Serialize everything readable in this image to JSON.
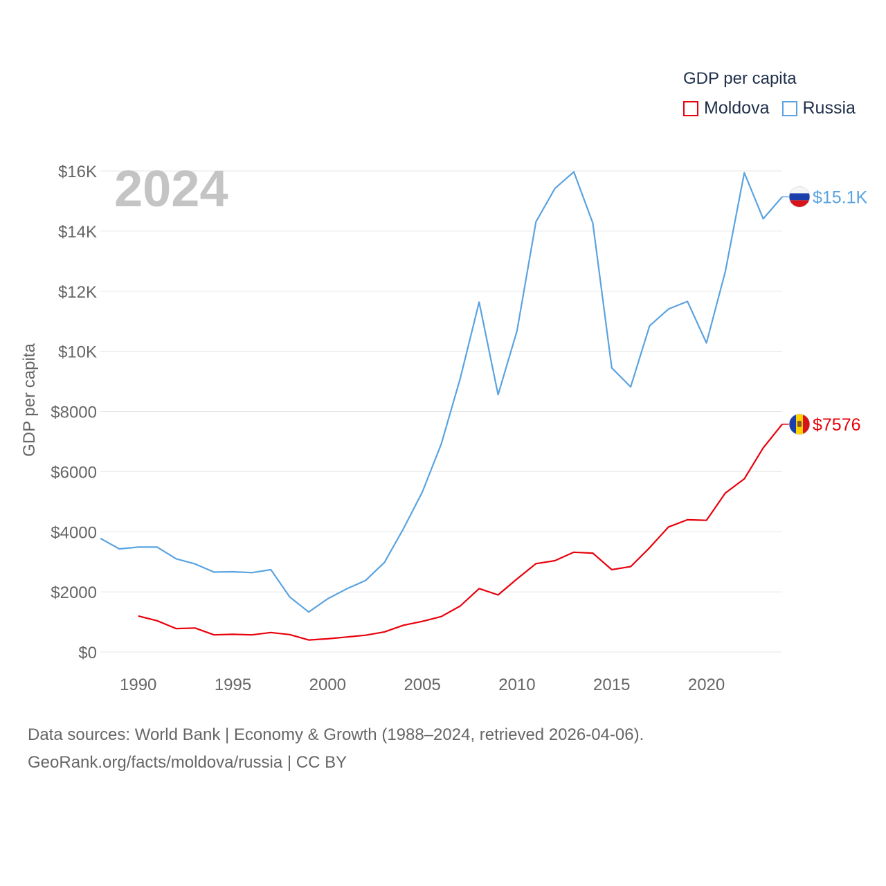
{
  "legend": {
    "title": "GDP per capita",
    "items": [
      {
        "label": "Moldova",
        "color": "#e8000b"
      },
      {
        "label": "Russia",
        "color": "#5aa3e0"
      }
    ]
  },
  "footer": {
    "line1": "Data sources: World Bank | Economy & Growth (1988–2024, retrieved 2026-04-06).",
    "line2": "GeoRank.org/facts/moldova/russia | CC BY"
  },
  "chart_data": {
    "type": "line",
    "title": "",
    "year_label": "2024",
    "xlabel": "",
    "ylabel": "GDP per capita",
    "xlim": [
      1988,
      2024
    ],
    "ylim": [
      0,
      16000
    ],
    "x_ticks": [
      1990,
      1995,
      2000,
      2005,
      2010,
      2015,
      2020
    ],
    "y_ticks": [
      {
        "value": 0,
        "label": "$0"
      },
      {
        "value": 2000,
        "label": "$2000"
      },
      {
        "value": 4000,
        "label": "$4000"
      },
      {
        "value": 6000,
        "label": "$6000"
      },
      {
        "value": 8000,
        "label": "$8000"
      },
      {
        "value": 10000,
        "label": "$10K"
      },
      {
        "value": 12000,
        "label": "$12K"
      },
      {
        "value": 14000,
        "label": "$14K"
      },
      {
        "value": 16000,
        "label": "$16K"
      }
    ],
    "series": [
      {
        "name": "Russia",
        "color": "#5aa3e0",
        "end_label": "$15.1K",
        "x": [
          1988,
          1989,
          1990,
          1991,
          1992,
          1993,
          1994,
          1995,
          1996,
          1997,
          1998,
          1999,
          2000,
          2001,
          2002,
          2003,
          2004,
          2005,
          2006,
          2007,
          2008,
          2009,
          2010,
          2011,
          2012,
          2013,
          2014,
          2015,
          2016,
          2017,
          2018,
          2019,
          2020,
          2021,
          2022,
          2023,
          2024
        ],
        "values": [
          3780,
          3430,
          3490,
          3490,
          3100,
          2930,
          2660,
          2670,
          2640,
          2740,
          1830,
          1330,
          1770,
          2100,
          2380,
          2980,
          4100,
          5320,
          6920,
          9100,
          11640,
          8560,
          10680,
          14310,
          15420,
          15970,
          14270,
          9450,
          8820,
          10850,
          11410,
          11660,
          10280,
          12660,
          15940,
          14410,
          15140
        ]
      },
      {
        "name": "Moldova",
        "color": "#e8000b",
        "end_label": "$7576",
        "x": [
          1990,
          1991,
          1992,
          1993,
          1994,
          1995,
          1996,
          1997,
          1998,
          1999,
          2000,
          2001,
          2002,
          2003,
          2004,
          2005,
          2006,
          2007,
          2008,
          2009,
          2010,
          2011,
          2012,
          2013,
          2014,
          2015,
          2016,
          2017,
          2018,
          2019,
          2020,
          2021,
          2022,
          2023,
          2024
        ],
        "values": [
          1200,
          1040,
          780,
          800,
          570,
          590,
          570,
          650,
          580,
          400,
          440,
          500,
          560,
          670,
          890,
          1020,
          1180,
          1530,
          2110,
          1900,
          2430,
          2940,
          3040,
          3320,
          3290,
          2740,
          2840,
          3470,
          4160,
          4400,
          4380,
          5290,
          5760,
          6790,
          7576
        ]
      }
    ]
  }
}
